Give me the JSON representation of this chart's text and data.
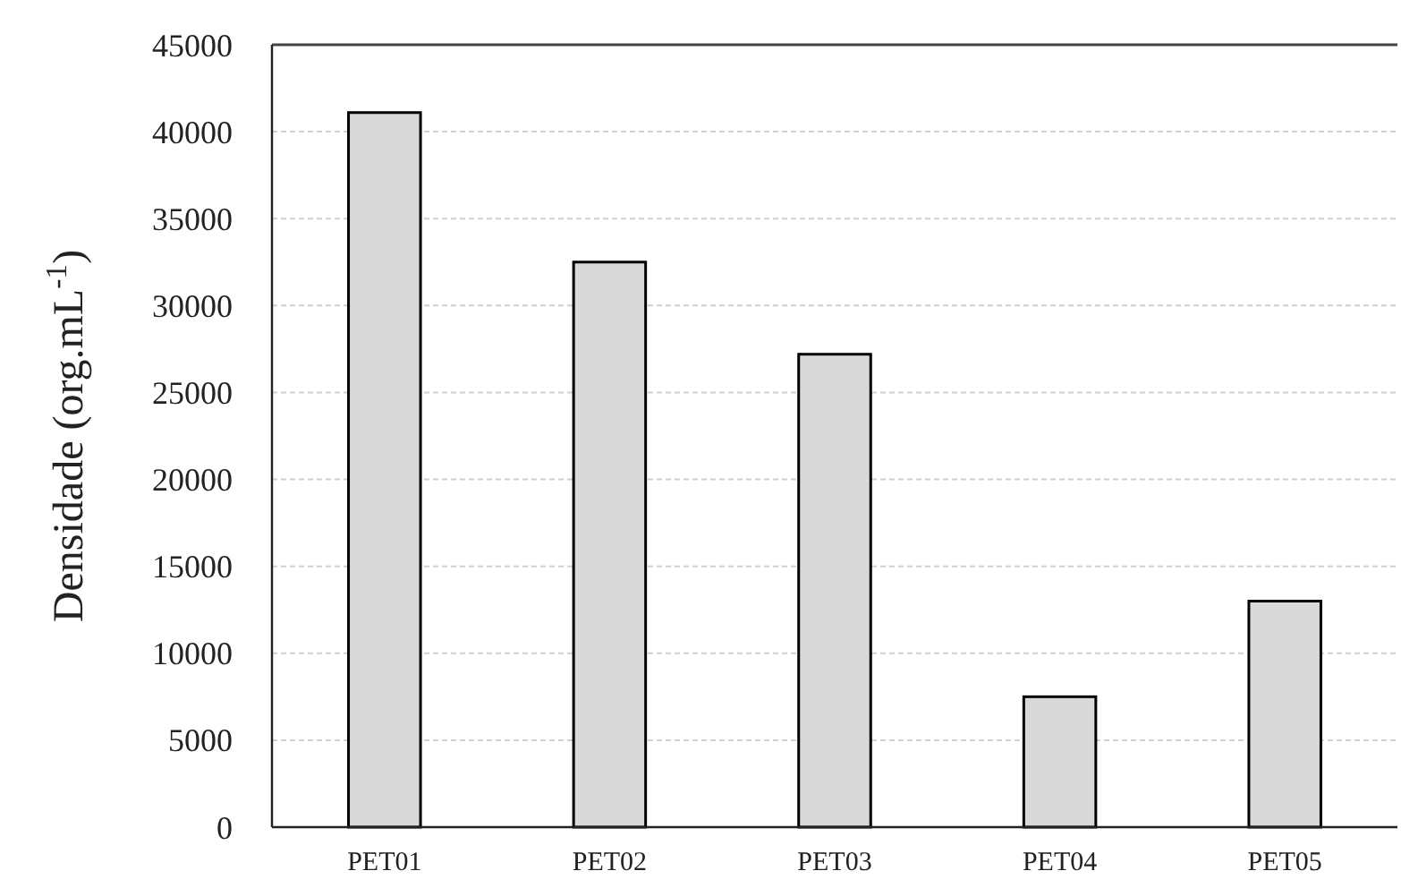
{
  "chart_data": {
    "type": "bar",
    "ylabel": "Densidade (org.mL$^{-1}$)",
    "categories": [
      "PET01",
      "PET02",
      "PET03",
      "PET04",
      "PET05"
    ],
    "values": [
      41100,
      32500,
      27200,
      7500,
      13000
    ],
    "color": "#d9d9d9",
    "ylim": [
      0,
      45000
    ],
    "yticks": [
      0,
      5000,
      10000,
      15000,
      20000,
      25000,
      30000,
      35000,
      40000,
      45000
    ],
    "grid": "y"
  }
}
